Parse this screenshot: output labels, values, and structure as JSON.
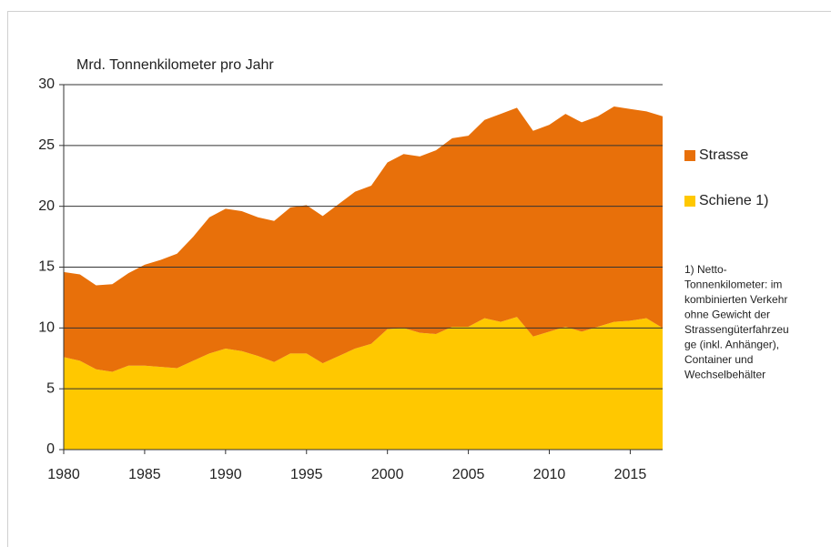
{
  "chart_data": {
    "type": "stacked_area",
    "ylabel": "Mrd. Tonnenkilometer pro Jahr",
    "x": [
      1980,
      1981,
      1982,
      1983,
      1984,
      1985,
      1986,
      1987,
      1988,
      1989,
      1990,
      1991,
      1992,
      1993,
      1994,
      1995,
      1996,
      1997,
      1998,
      1999,
      2000,
      2001,
      2002,
      2003,
      2004,
      2005,
      2006,
      2007,
      2008,
      2009,
      2010,
      2011,
      2012,
      2013,
      2014,
      2015,
      2016,
      2017
    ],
    "series": [
      {
        "name": "Schiene 1)",
        "color": "#ffc800",
        "values": [
          7.6,
          7.3,
          6.6,
          6.4,
          6.9,
          6.9,
          6.8,
          6.7,
          7.3,
          7.9,
          8.3,
          8.1,
          7.7,
          7.2,
          7.9,
          7.9,
          7.1,
          7.7,
          8.3,
          8.7,
          9.9,
          10.0,
          9.6,
          9.5,
          10.1,
          10.1,
          10.8,
          10.5,
          10.9,
          9.3,
          9.7,
          10.1,
          9.7,
          10.1,
          10.5,
          10.6,
          10.8,
          10.0
        ]
      },
      {
        "name": "Strasse",
        "color": "#e8700a",
        "values": [
          7.0,
          7.1,
          6.9,
          7.2,
          7.6,
          8.3,
          8.8,
          9.4,
          10.2,
          11.2,
          11.5,
          11.5,
          11.4,
          11.6,
          12.0,
          12.2,
          12.1,
          12.5,
          12.9,
          13.0,
          13.7,
          14.3,
          14.5,
          15.1,
          15.5,
          15.7,
          16.3,
          17.1,
          17.2,
          16.9,
          17.0,
          17.5,
          17.2,
          17.3,
          17.7,
          17.4,
          17.0,
          17.4
        ]
      }
    ],
    "xlim": [
      1980,
      2017
    ],
    "xticks": [
      1980,
      1985,
      1990,
      1995,
      2000,
      2005,
      2010,
      2015
    ],
    "ylim": [
      0,
      30
    ],
    "yticks": [
      0,
      5,
      10,
      15,
      20,
      25,
      30
    ],
    "grid": true,
    "footnote": [
      "1) Netto-",
      "Tonnenkilometer: im",
      "kombinierten Verkehr",
      "ohne Gewicht der",
      "Strassengüterfahrzeu",
      "ge (inkl. Anhänger),",
      "Container und",
      "Wechselbehälter"
    ]
  }
}
